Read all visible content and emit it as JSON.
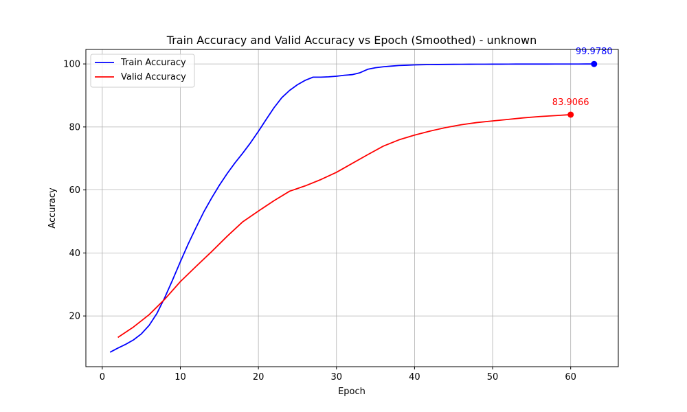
{
  "chart_data": {
    "type": "line",
    "title": "Train Accuracy and Valid Accuracy vs Epoch (Smoothed) - unknown",
    "xlabel": "Epoch",
    "ylabel": "Accuracy",
    "xlim": [
      -2.1,
      66.1
    ],
    "ylim": [
      3.9,
      104.6
    ],
    "xticks": [
      0,
      10,
      20,
      30,
      40,
      50,
      60
    ],
    "yticks": [
      20,
      40,
      60,
      80,
      100
    ],
    "grid": true,
    "legend_position": "upper-left",
    "series": [
      {
        "name": "Train Accuracy",
        "color": "#0000ff",
        "x": [
          1,
          2,
          3,
          4,
          5,
          6,
          7,
          8,
          9,
          10,
          11,
          12,
          13,
          14,
          15,
          16,
          17,
          18,
          19,
          20,
          21,
          22,
          23,
          24,
          25,
          26,
          27,
          28,
          29,
          30,
          31,
          32,
          33,
          34,
          35,
          36,
          37,
          38,
          39,
          40,
          41,
          42,
          43,
          44,
          45,
          46,
          47,
          48,
          49,
          50,
          51,
          52,
          53,
          54,
          55,
          56,
          57,
          58,
          59,
          60,
          61,
          62,
          63
        ],
        "y": [
          8.5,
          9.8,
          11.0,
          12.4,
          14.3,
          17.0,
          20.8,
          25.8,
          31.4,
          37.2,
          42.8,
          48.0,
          53.0,
          57.4,
          61.5,
          65.2,
          68.6,
          71.7,
          75.0,
          78.6,
          82.4,
          86.1,
          89.3,
          91.6,
          93.4,
          94.8,
          95.8,
          95.8,
          95.9,
          96.1,
          96.4,
          96.6,
          97.2,
          98.3,
          98.8,
          99.1,
          99.3,
          99.5,
          99.6,
          99.7,
          99.75,
          99.8,
          99.82,
          99.85,
          99.87,
          99.88,
          99.9,
          99.91,
          99.92,
          99.93,
          99.93,
          99.94,
          99.95,
          99.95,
          99.96,
          99.96,
          99.96,
          99.97,
          99.97,
          99.97,
          99.97,
          99.978,
          99.978
        ],
        "last_value_label": "99.9780"
      },
      {
        "name": "Valid Accuracy",
        "color": "#ff0000",
        "x": [
          2,
          4,
          6,
          8,
          10,
          12,
          14,
          16,
          18,
          20,
          22,
          24,
          26,
          28,
          30,
          32,
          34,
          36,
          38,
          40,
          42,
          44,
          46,
          48,
          50,
          52,
          54,
          56,
          58,
          60
        ],
        "y": [
          13.2,
          16.5,
          20.4,
          25.3,
          30.9,
          35.7,
          40.4,
          45.3,
          49.9,
          53.3,
          56.6,
          59.6,
          61.3,
          63.3,
          65.6,
          68.4,
          71.2,
          73.9,
          75.9,
          77.4,
          78.7,
          79.8,
          80.7,
          81.4,
          81.9,
          82.4,
          82.9,
          83.3,
          83.6,
          83.9066
        ],
        "last_value_label": "83.9066"
      }
    ]
  }
}
